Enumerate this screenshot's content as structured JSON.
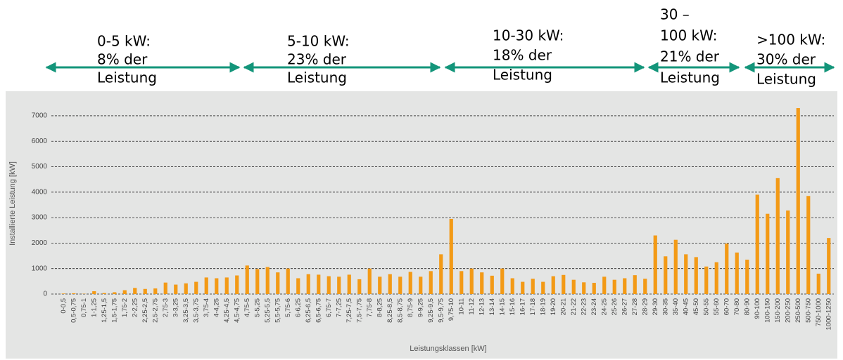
{
  "chart_data": {
    "type": "bar",
    "annotations": [
      {
        "lines": [
          "0-5 kW:",
          "8% der",
          "Leistung"
        ]
      },
      {
        "lines": [
          "5-10 kW:",
          "23% der",
          "Leistung"
        ]
      },
      {
        "lines": [
          "10-30 kW:",
          "18% der",
          "Leistung"
        ]
      },
      {
        "lines": [
          "30 –",
          "100 kW:",
          "21% der",
          "Leistung"
        ]
      },
      {
        "lines": [
          ">100 kW:",
          "30% der",
          "Leistung"
        ]
      }
    ],
    "y_label": "Installierte Leistung [kW]",
    "x_label": "Leistungsklassen [kW]",
    "categories": [
      "0-0,5",
      "0,5-0,75",
      "0,75-1",
      "1-1,25",
      "1,25-1,5",
      "1,5-1,75",
      "1,75-2",
      "2-2,25",
      "2,25-2,5",
      "2,5-2,75",
      "2,75-3",
      "3-3,25",
      "3,25-3,5",
      "3,5-3,75",
      "3,75-4",
      "4-4,25",
      "4,25-4,5",
      "4,5-4,75",
      "4,75-5",
      "5-5,25",
      "5,25-5,5",
      "5,5-5,75",
      "5,75-6",
      "6-6,25",
      "6,25-6,5",
      "6,5-6,75",
      "6,75-7",
      "7-7,25",
      "7,25-7,5",
      "7,5-7,75",
      "7,75-8",
      "8-8,25",
      "8,25-8,5",
      "8,5-8,75",
      "8,75-9",
      "9-9,25",
      "9,25-9,5",
      "9,5-9,75",
      "9,75-10",
      "10-11",
      "11-12",
      "12-13",
      "13-14",
      "14-15",
      "15-16",
      "16-17",
      "17-18",
      "18-19",
      "19-20",
      "20-21",
      "21-22",
      "22-23",
      "23-24",
      "24-25",
      "25-26",
      "26-27",
      "27-28",
      "28-29",
      "29-30",
      "30-35",
      "35-40",
      "40-45",
      "45-50",
      "50-55",
      "55-60",
      "60-70",
      "70-80",
      "80-90",
      "90-100",
      "100-150",
      "150-200",
      "200-250",
      "250-500",
      "500-750",
      "750-1000",
      "1000-1250"
    ],
    "values": [
      20,
      30,
      10,
      110,
      40,
      70,
      150,
      240,
      200,
      220,
      450,
      370,
      420,
      480,
      650,
      620,
      650,
      730,
      1120,
      980,
      1060,
      850,
      1000,
      620,
      780,
      760,
      700,
      680,
      760,
      580,
      1000,
      680,
      780,
      680,
      870,
      680,
      900,
      1560,
      2950,
      900,
      1000,
      850,
      720,
      1000,
      620,
      480,
      600,
      480,
      700,
      750,
      560,
      460,
      440,
      680,
      560,
      620,
      740,
      600,
      2300,
      1480,
      2130,
      1560,
      1450,
      1080,
      1250,
      1980,
      1630,
      1350,
      3900,
      3150,
      4550,
      3280,
      7300,
      3850,
      800,
      2200
    ],
    "color": "#f39a16",
    "ylim": [
      0,
      7400
    ],
    "yticks": [
      0,
      1000,
      2000,
      3000,
      4000,
      5000,
      6000,
      7000
    ],
    "grid": true
  }
}
